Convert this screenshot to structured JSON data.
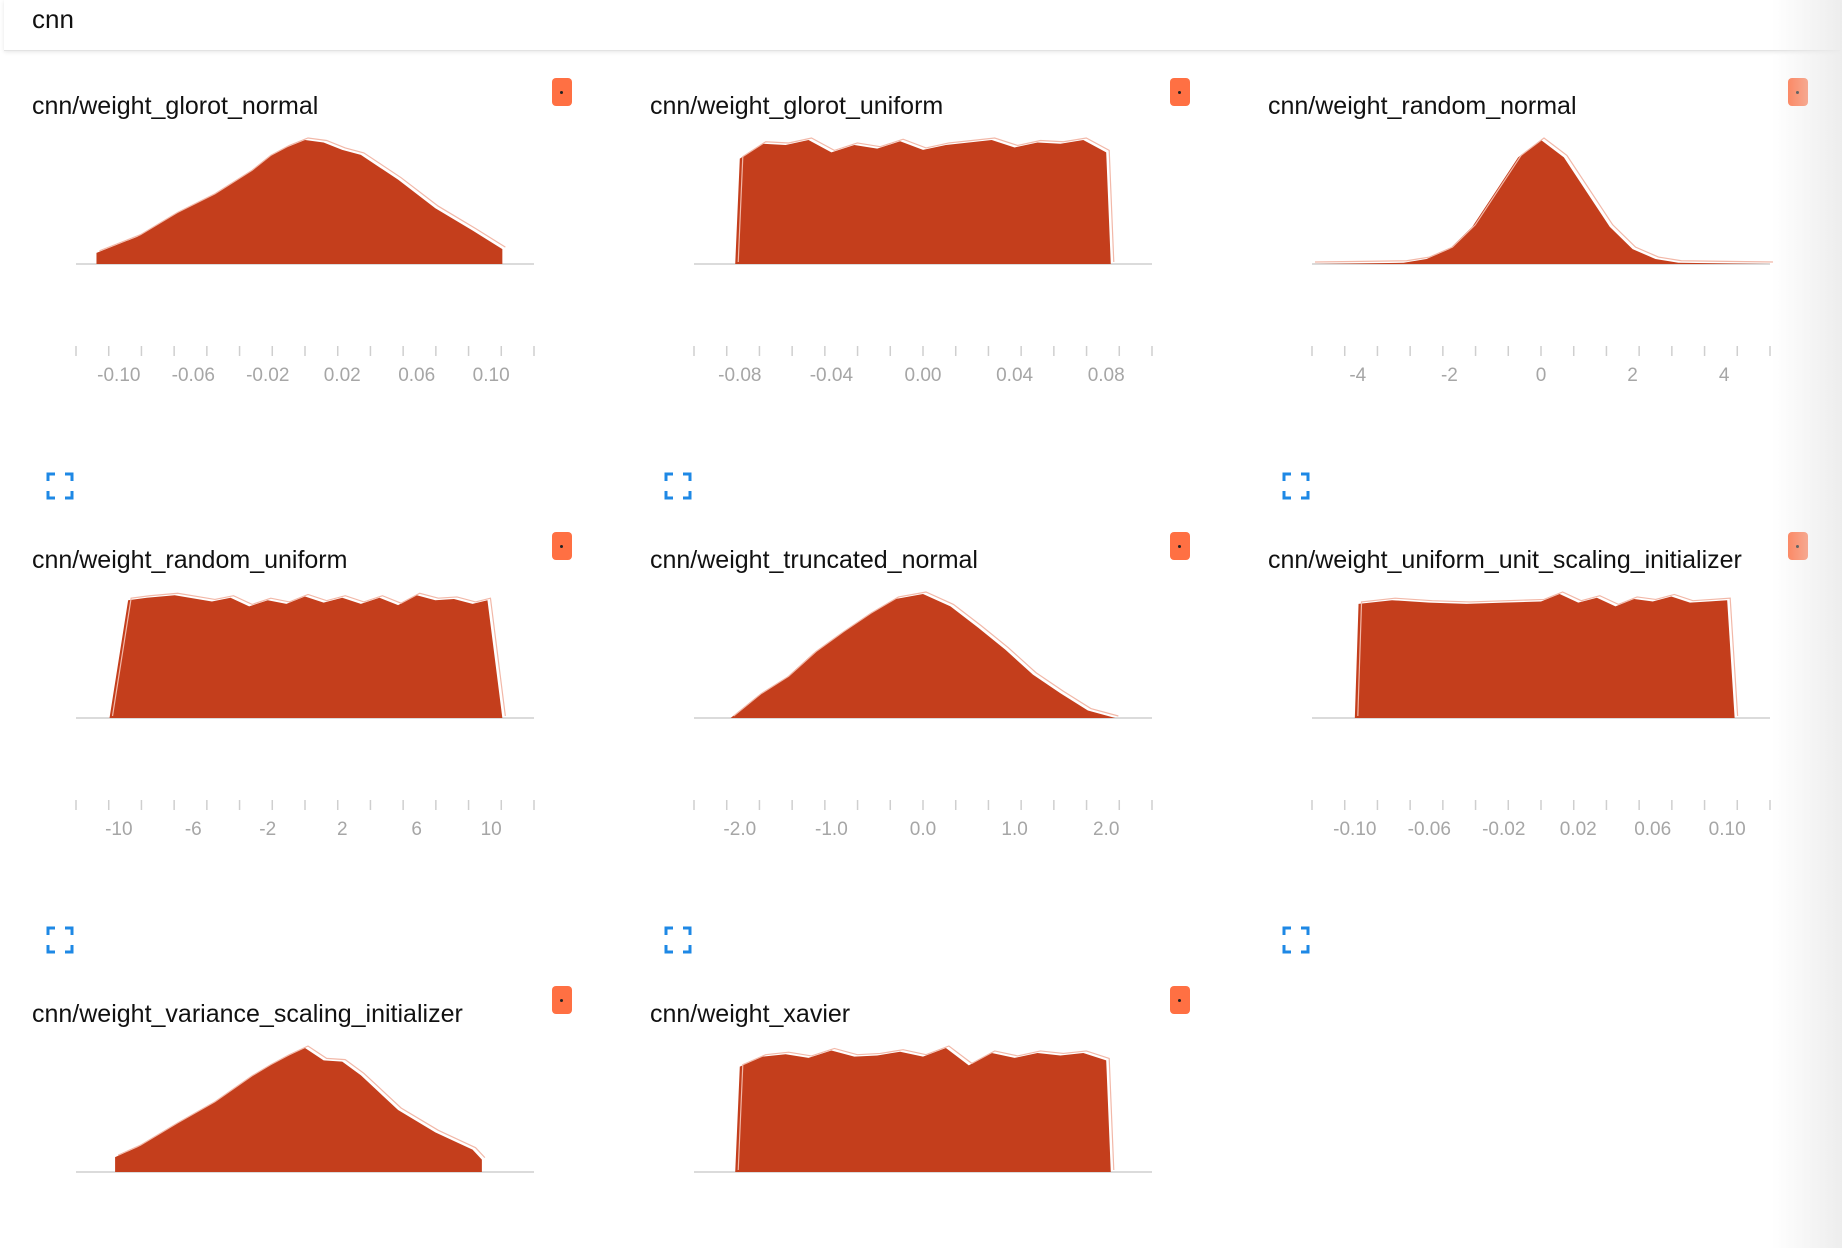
{
  "header": {
    "title": "cnn"
  },
  "colors": {
    "fill": "#c43e1c",
    "outline": "#f2b8a8",
    "axis": "#cfcfcf",
    "tick_label": "#a6a6a6",
    "toggle": "#ff7043",
    "expand_icon": "#1e88e5"
  },
  "icons": {
    "toggle": "toggle-icon",
    "expand": "fullscreen-icon"
  },
  "cards": [
    {
      "title": "cnn/weight_glorot_normal"
    },
    {
      "title": "cnn/weight_glorot_uniform"
    },
    {
      "title": "cnn/weight_random_normal"
    },
    {
      "title": "cnn/weight_random_uniform"
    },
    {
      "title": "cnn/weight_truncated_normal"
    },
    {
      "title": "cnn/weight_uniform_unit_scaling_initializer"
    },
    {
      "title": "cnn/weight_variance_scaling_initializer"
    },
    {
      "title": "cnn/weight_xavier"
    }
  ],
  "chart_data": [
    {
      "type": "area",
      "title": "cnn/weight_glorot_normal",
      "xlim": [
        -0.123,
        0.123
      ],
      "x_ticks": [
        "-0.10",
        "-0.06",
        "-0.02",
        "0.02",
        "0.06",
        "0.10"
      ],
      "x": [
        -0.112,
        -0.09,
        -0.07,
        -0.05,
        -0.03,
        -0.02,
        -0.01,
        0.0,
        0.01,
        0.02,
        0.03,
        0.05,
        0.07,
        0.09,
        0.106
      ],
      "y": [
        0.09,
        0.22,
        0.4,
        0.55,
        0.74,
        0.86,
        0.94,
        1.0,
        0.98,
        0.92,
        0.88,
        0.68,
        0.45,
        0.27,
        0.12
      ]
    },
    {
      "type": "area",
      "title": "cnn/weight_glorot_uniform",
      "xlim": [
        -0.1,
        0.1
      ],
      "x_ticks": [
        "-0.08",
        "-0.04",
        "0.00",
        "0.04",
        "0.08"
      ],
      "x": [
        -0.082,
        -0.08,
        -0.07,
        -0.06,
        -0.05,
        -0.04,
        -0.03,
        -0.02,
        -0.01,
        0.0,
        0.01,
        0.02,
        0.03,
        0.04,
        0.05,
        0.06,
        0.07,
        0.08,
        0.082
      ],
      "y": [
        0.0,
        0.85,
        0.97,
        0.96,
        1.0,
        0.9,
        0.96,
        0.93,
        0.99,
        0.92,
        0.96,
        0.98,
        1.0,
        0.94,
        0.98,
        0.97,
        1.0,
        0.9,
        0.0
      ]
    },
    {
      "type": "area",
      "title": "cnn/weight_random_normal",
      "xlim": [
        -5,
        5
      ],
      "x_ticks": [
        "-4",
        "-2",
        "0",
        "2",
        "4"
      ],
      "x": [
        -5,
        -3,
        -2.5,
        -2,
        -1.5,
        -1,
        -0.5,
        0,
        0.5,
        1,
        1.5,
        2,
        2.5,
        3,
        5
      ],
      "y": [
        0.0,
        0.01,
        0.04,
        0.12,
        0.3,
        0.58,
        0.86,
        1.0,
        0.86,
        0.58,
        0.3,
        0.12,
        0.04,
        0.01,
        0.0
      ]
    },
    {
      "type": "area",
      "title": "cnn/weight_random_uniform",
      "xlim": [
        -12.3,
        12.3
      ],
      "x_ticks": [
        "-10",
        "-6",
        "-2",
        "2",
        "6",
        "10"
      ],
      "x": [
        -10.5,
        -9.5,
        -8.5,
        -7,
        -5,
        -4,
        -3,
        -2,
        -1,
        0,
        1,
        2,
        3,
        4,
        5,
        6,
        7,
        8,
        9,
        9.8,
        10.6
      ],
      "y": [
        0.0,
        0.95,
        0.97,
        0.99,
        0.94,
        0.97,
        0.9,
        0.95,
        0.92,
        0.98,
        0.93,
        0.97,
        0.92,
        0.97,
        0.91,
        0.99,
        0.95,
        0.96,
        0.92,
        0.95,
        0.0
      ]
    },
    {
      "type": "area",
      "title": "cnn/weight_truncated_normal",
      "xlim": [
        -2.5,
        2.5
      ],
      "x_ticks": [
        "-2.0",
        "-1.0",
        "0.0",
        "1.0",
        "2.0"
      ],
      "x": [
        -2.1,
        -1.8,
        -1.5,
        -1.2,
        -0.9,
        -0.6,
        -0.3,
        0.0,
        0.3,
        0.6,
        0.9,
        1.2,
        1.5,
        1.8,
        2.1
      ],
      "y": [
        0.0,
        0.18,
        0.32,
        0.52,
        0.68,
        0.83,
        0.96,
        1.0,
        0.9,
        0.73,
        0.55,
        0.35,
        0.2,
        0.06,
        0.0
      ]
    },
    {
      "type": "area",
      "title": "cnn/weight_uniform_unit_scaling_initializer",
      "xlim": [
        -0.123,
        0.123
      ],
      "x_ticks": [
        "-0.10",
        "-0.06",
        "-0.02",
        "0.02",
        "0.06",
        "0.10"
      ],
      "x": [
        -0.1,
        -0.098,
        -0.08,
        -0.06,
        -0.04,
        -0.02,
        0.0,
        0.01,
        0.02,
        0.03,
        0.04,
        0.05,
        0.06,
        0.07,
        0.08,
        0.09,
        0.1,
        0.104
      ],
      "y": [
        0.0,
        0.92,
        0.95,
        0.93,
        0.92,
        0.93,
        0.94,
        1.0,
        0.93,
        0.97,
        0.9,
        0.96,
        0.94,
        0.98,
        0.93,
        0.94,
        0.95,
        0.0
      ]
    },
    {
      "type": "area",
      "title": "cnn/weight_variance_scaling_initializer",
      "xlim": [
        -0.123,
        0.123
      ],
      "x_ticks": [],
      "x": [
        -0.102,
        -0.09,
        -0.07,
        -0.05,
        -0.03,
        -0.02,
        -0.01,
        0.0,
        0.01,
        0.02,
        0.03,
        0.05,
        0.07,
        0.09,
        0.095
      ],
      "y": [
        0.12,
        0.2,
        0.38,
        0.55,
        0.76,
        0.85,
        0.93,
        1.0,
        0.9,
        0.89,
        0.78,
        0.5,
        0.32,
        0.18,
        0.1
      ]
    },
    {
      "type": "area",
      "title": "cnn/weight_xavier",
      "xlim": [
        -0.1,
        0.1
      ],
      "x_ticks": [],
      "x": [
        -0.082,
        -0.08,
        -0.07,
        -0.06,
        -0.05,
        -0.04,
        -0.03,
        -0.02,
        -0.01,
        0.0,
        0.01,
        0.02,
        0.03,
        0.04,
        0.05,
        0.06,
        0.07,
        0.08,
        0.082
      ],
      "y": [
        0.0,
        0.85,
        0.93,
        0.95,
        0.92,
        0.98,
        0.93,
        0.94,
        0.97,
        0.93,
        1.0,
        0.86,
        0.96,
        0.92,
        0.96,
        0.94,
        0.96,
        0.9,
        0.0
      ]
    }
  ]
}
